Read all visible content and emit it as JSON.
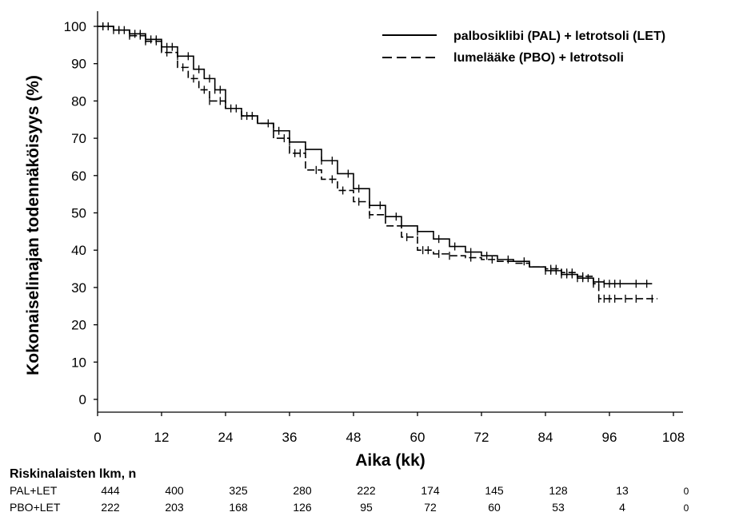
{
  "chart_data": {
    "type": "line",
    "xlabel": "Aika (kk)",
    "ylabel": "Kokonaiselinajan todennäköisyys (%)",
    "xlim": [
      0,
      108
    ],
    "ylim": [
      0,
      100
    ],
    "x_ticks": [
      "0",
      "12",
      "24",
      "36",
      "48",
      "60",
      "72",
      "84",
      "96",
      "108"
    ],
    "y_ticks": [
      "0",
      "10",
      "20",
      "30",
      "40",
      "50",
      "60",
      "70",
      "80",
      "90",
      "100"
    ],
    "legend_position": "top-right",
    "series": [
      {
        "name": "palbosiklibi (PAL) + letrotsoli (LET)",
        "style": "solid",
        "color": "#000000",
        "points": [
          [
            0,
            100
          ],
          [
            3,
            99
          ],
          [
            6,
            98
          ],
          [
            9,
            96.5
          ],
          [
            12,
            94.5
          ],
          [
            15,
            92
          ],
          [
            18,
            88.5
          ],
          [
            20,
            86
          ],
          [
            22,
            83
          ],
          [
            24,
            78
          ],
          [
            27,
            76
          ],
          [
            30,
            74
          ],
          [
            33,
            72
          ],
          [
            36,
            69
          ],
          [
            39,
            67
          ],
          [
            42,
            64
          ],
          [
            45,
            60.5
          ],
          [
            48,
            56.5
          ],
          [
            51,
            52
          ],
          [
            54,
            49
          ],
          [
            57,
            46.5
          ],
          [
            60,
            45
          ],
          [
            63,
            43
          ],
          [
            66,
            41
          ],
          [
            69,
            39.5
          ],
          [
            72,
            38.5
          ],
          [
            75,
            37.5
          ],
          [
            78,
            37
          ],
          [
            81,
            35.5
          ],
          [
            84,
            34.5
          ],
          [
            87,
            33.5
          ],
          [
            90,
            32.5
          ],
          [
            93,
            31.5
          ],
          [
            95,
            31
          ],
          [
            104,
            31
          ]
        ],
        "censored": [
          1,
          2,
          3,
          4,
          5,
          6,
          7,
          8,
          9,
          10,
          11,
          12,
          13,
          14,
          15,
          17,
          19,
          21,
          22,
          23,
          25,
          27,
          28,
          32,
          34,
          36,
          39,
          42,
          44,
          47,
          49,
          53,
          56,
          60,
          64,
          67,
          70,
          73,
          77,
          80,
          84,
          85,
          86,
          87,
          88,
          89,
          90,
          91,
          92,
          93,
          94,
          95,
          96,
          97,
          98,
          101,
          103
        ]
      },
      {
        "name": "lumelääke (PBO) + letrotsoli",
        "style": "dashed",
        "color": "#000000",
        "points": [
          [
            0,
            100
          ],
          [
            3,
            99
          ],
          [
            6,
            97.5
          ],
          [
            9,
            96
          ],
          [
            12,
            93
          ],
          [
            15,
            89
          ],
          [
            17,
            86
          ],
          [
            19,
            83
          ],
          [
            21,
            80
          ],
          [
            24,
            78
          ],
          [
            27,
            76
          ],
          [
            30,
            74
          ],
          [
            33,
            70
          ],
          [
            36,
            66
          ],
          [
            39,
            61.5
          ],
          [
            42,
            59
          ],
          [
            45,
            56
          ],
          [
            48,
            53
          ],
          [
            51,
            49.5
          ],
          [
            54,
            46.5
          ],
          [
            57,
            43.5
          ],
          [
            60,
            40
          ],
          [
            63,
            39
          ],
          [
            66,
            38.5
          ],
          [
            69,
            38
          ],
          [
            72,
            37.5
          ],
          [
            75,
            37
          ],
          [
            78,
            36.5
          ],
          [
            81,
            35.5
          ],
          [
            84,
            35
          ],
          [
            87,
            34
          ],
          [
            90,
            33
          ],
          [
            93,
            31
          ],
          [
            94,
            27
          ],
          [
            105,
            27
          ]
        ],
        "censored": [
          1,
          2,
          4,
          6,
          8,
          9,
          11,
          13,
          16,
          18,
          20,
          21,
          23,
          26,
          29,
          35,
          37,
          38,
          41,
          44,
          46,
          49,
          51,
          58,
          61,
          62,
          64,
          66,
          70,
          74,
          85,
          86,
          87,
          88,
          89,
          91,
          93,
          94,
          95,
          96,
          97,
          99,
          101,
          104
        ]
      }
    ]
  },
  "risk_table": {
    "title": "Riskinalaisten lkm, n",
    "rows": [
      {
        "label": "PAL+LET",
        "values": [
          "444",
          "400",
          "325",
          "280",
          "222",
          "174",
          "145",
          "128",
          "13",
          "0"
        ]
      },
      {
        "label": "PBO+LET",
        "values": [
          "222",
          "203",
          "168",
          "126",
          "95",
          "72",
          "60",
          "53",
          "4",
          "0"
        ]
      }
    ]
  }
}
